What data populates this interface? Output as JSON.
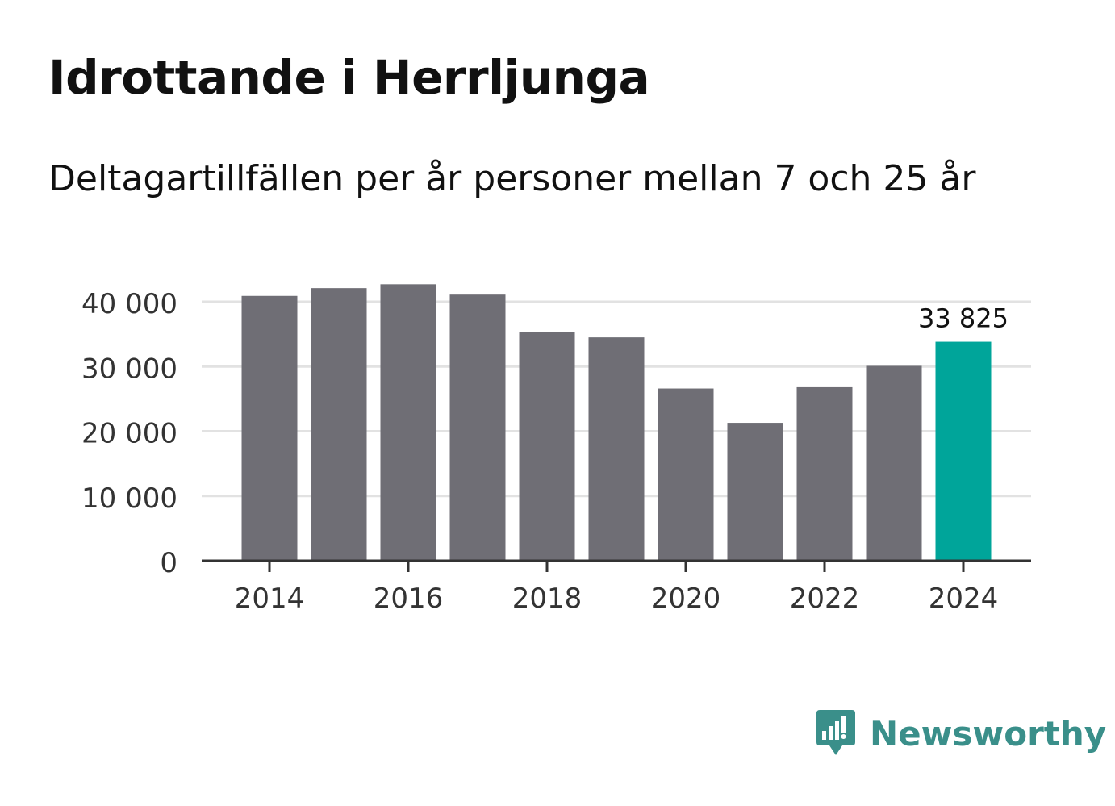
{
  "colors": {
    "bar": "#6f6e75",
    "highlight": "#00a59a",
    "grid": "#e2e2e2",
    "axis": "#333333",
    "brand": "#3a8f8a"
  },
  "chart_data": {
    "type": "bar",
    "title": "Idrottande i Herrljunga",
    "subtitle": "Deltagartillfällen per år personer mellan 7 och 25 år",
    "categories": [
      2014,
      2015,
      2016,
      2017,
      2018,
      2019,
      2020,
      2021,
      2022,
      2023,
      2024
    ],
    "values": [
      40900,
      42100,
      42700,
      41100,
      35300,
      34500,
      26600,
      21300,
      26800,
      30100,
      33825
    ],
    "highlight_index": 10,
    "highlight_label": "33 825",
    "ylim": [
      0,
      40000
    ],
    "yticks": [
      0,
      10000,
      20000,
      30000,
      40000
    ],
    "ytick_labels": [
      "0",
      "10 000",
      "20 000",
      "30 000",
      "40 000"
    ],
    "xtick_labels": [
      "2014",
      "2016",
      "2018",
      "2020",
      "2022",
      "2024"
    ],
    "xlabel": "",
    "ylabel": "",
    "grid": true,
    "legend": "none"
  },
  "brand": {
    "name": "Newsworthy",
    "icon": "bar-chart-speech-bubble-icon"
  }
}
